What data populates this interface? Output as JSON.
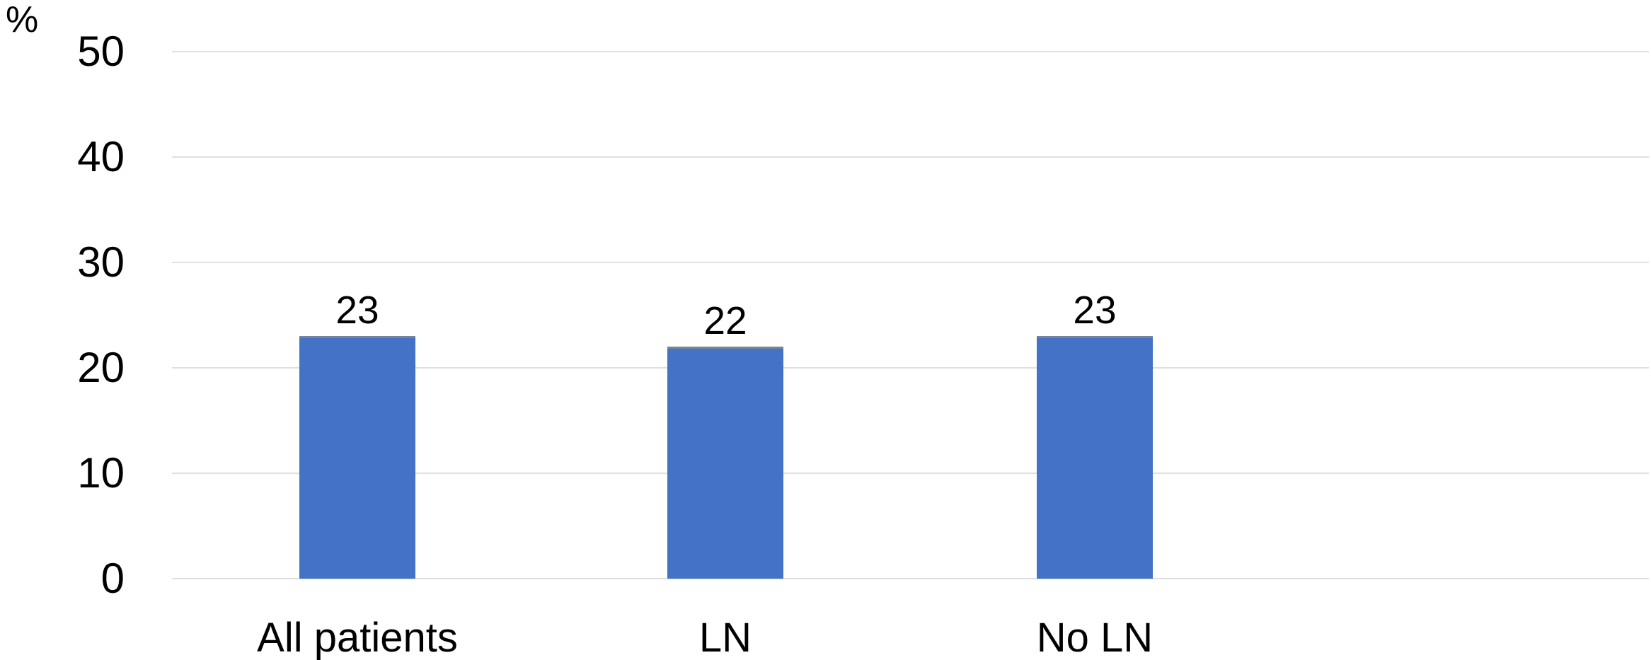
{
  "chart_data": {
    "type": "bar",
    "categories": [
      "All patients",
      "LN",
      "No LN"
    ],
    "values": [
      23,
      22,
      23
    ],
    "title": "",
    "xlabel": "",
    "ylabel": "%",
    "ylim": [
      0,
      50
    ],
    "yticks": [
      0,
      10,
      20,
      30,
      40,
      50
    ],
    "grid": true,
    "legend_position": "none",
    "bar_color": "#4473C5",
    "bar_top_edge_color": "#76839B",
    "gridline_color": "#E0E0E0",
    "text_color": "#000000",
    "background_color": "#FFFFFF"
  }
}
